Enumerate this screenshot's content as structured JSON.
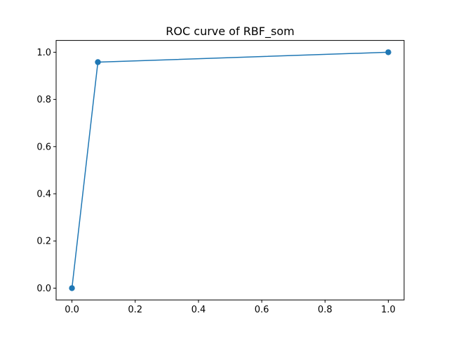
{
  "chart_data": {
    "type": "line",
    "title": "ROC curve of RBF_som",
    "xlabel": "",
    "ylabel": "",
    "xlim": [
      -0.05,
      1.05
    ],
    "ylim": [
      -0.05,
      1.05
    ],
    "x_ticks": [
      0.0,
      0.2,
      0.4,
      0.6,
      0.8,
      1.0
    ],
    "x_tick_labels": [
      "0.0",
      "0.2",
      "0.4",
      "0.6",
      "0.8",
      "1.0"
    ],
    "y_ticks": [
      0.0,
      0.2,
      0.4,
      0.6,
      0.8,
      1.0
    ],
    "y_tick_labels": [
      "0.0",
      "0.2",
      "0.4",
      "0.6",
      "0.8",
      "1.0"
    ],
    "grid": false,
    "series": [
      {
        "x": [
          0.0,
          0.082,
          1.0
        ],
        "y": [
          0.0,
          0.958,
          1.0
        ],
        "color": "#1f77b4",
        "marker": "circle"
      }
    ]
  }
}
